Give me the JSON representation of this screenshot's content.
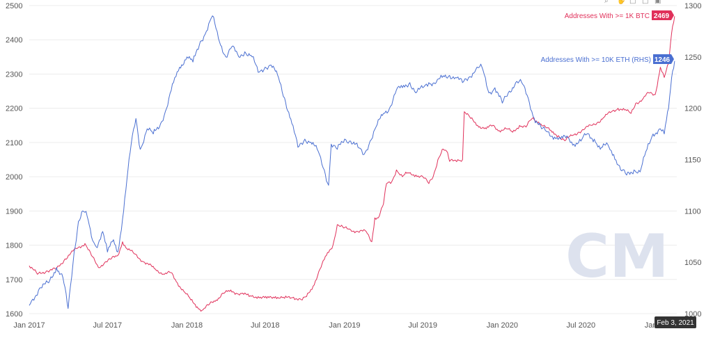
{
  "watermark": "CM",
  "toolbar_icons": [
    "search-icon",
    "hand-icon",
    "reset-icon",
    "download-icon",
    "camera-icon"
  ],
  "hover_date": "Feb 3, 2021",
  "chart_data": {
    "type": "line",
    "x_axis": {
      "range": [
        "2017-01-01",
        "2021-02-08"
      ],
      "ticks": [
        {
          "date": "2017-01-01",
          "label": "Jan 2017"
        },
        {
          "date": "2017-07-01",
          "label": "Jul 2017"
        },
        {
          "date": "2018-01-01",
          "label": "Jan 2018"
        },
        {
          "date": "2018-07-01",
          "label": "Jul 2018"
        },
        {
          "date": "2019-01-01",
          "label": "Jan 2019"
        },
        {
          "date": "2019-07-01",
          "label": "Jul 2019"
        },
        {
          "date": "2020-01-01",
          "label": "Jan 2020"
        },
        {
          "date": "2020-07-01",
          "label": "Jul 2020"
        },
        {
          "date": "2021-01-01",
          "label": "Jan 2021"
        }
      ]
    },
    "y_left": {
      "range": [
        1600,
        2500
      ],
      "ticks": [
        1600,
        1700,
        1800,
        1900,
        2000,
        2100,
        2200,
        2300,
        2400,
        2500
      ]
    },
    "y_right": {
      "range": [
        1000,
        1300
      ],
      "ticks": [
        1000,
        1050,
        1100,
        1150,
        1200,
        1250,
        1300
      ]
    },
    "grid": "horizontal",
    "series": [
      {
        "name": "Addresses With >= 1K BTC",
        "axis": "left",
        "color": "#e0305a",
        "last_value": "2469",
        "points": [
          [
            "2017-01-01",
            1740
          ],
          [
            "2017-01-20",
            1715
          ],
          [
            "2017-02-10",
            1725
          ],
          [
            "2017-03-05",
            1730
          ],
          [
            "2017-03-25",
            1760
          ],
          [
            "2017-04-20",
            1790
          ],
          [
            "2017-05-10",
            1805
          ],
          [
            "2017-05-25",
            1770
          ],
          [
            "2017-06-10",
            1735
          ],
          [
            "2017-06-25",
            1750
          ],
          [
            "2017-07-10",
            1760
          ],
          [
            "2017-07-25",
            1770
          ],
          [
            "2017-08-05",
            1810
          ],
          [
            "2017-08-15",
            1790
          ],
          [
            "2017-09-01",
            1775
          ],
          [
            "2017-09-25",
            1750
          ],
          [
            "2017-10-20",
            1730
          ],
          [
            "2017-11-10",
            1715
          ],
          [
            "2017-11-25",
            1720
          ],
          [
            "2017-12-10",
            1690
          ],
          [
            "2017-12-25",
            1665
          ],
          [
            "2018-01-10",
            1640
          ],
          [
            "2018-01-25",
            1620
          ],
          [
            "2018-02-05",
            1610
          ],
          [
            "2018-02-20",
            1625
          ],
          [
            "2018-03-10",
            1640
          ],
          [
            "2018-03-25",
            1660
          ],
          [
            "2018-04-10",
            1665
          ],
          [
            "2018-04-25",
            1660
          ],
          [
            "2018-05-10",
            1660
          ],
          [
            "2018-05-25",
            1650
          ],
          [
            "2018-06-15",
            1650
          ],
          [
            "2018-07-05",
            1645
          ],
          [
            "2018-07-25",
            1650
          ],
          [
            "2018-08-15",
            1645
          ],
          [
            "2018-09-05",
            1648
          ],
          [
            "2018-09-25",
            1640
          ],
          [
            "2018-10-05",
            1650
          ],
          [
            "2018-10-20",
            1680
          ],
          [
            "2018-11-05",
            1730
          ],
          [
            "2018-11-20",
            1770
          ],
          [
            "2018-12-05",
            1800
          ],
          [
            "2018-12-15",
            1860
          ],
          [
            "2018-12-30",
            1850
          ],
          [
            "2019-01-15",
            1845
          ],
          [
            "2019-02-01",
            1840
          ],
          [
            "2019-02-20",
            1840
          ],
          [
            "2019-03-05",
            1810
          ],
          [
            "2019-03-12",
            1880
          ],
          [
            "2019-03-20",
            1880
          ],
          [
            "2019-04-01",
            1920
          ],
          [
            "2019-04-08",
            1980
          ],
          [
            "2019-04-20",
            1985
          ],
          [
            "2019-05-01",
            2020
          ],
          [
            "2019-05-15",
            2000
          ],
          [
            "2019-05-25",
            2010
          ],
          [
            "2019-06-15",
            2005
          ],
          [
            "2019-07-01",
            2000
          ],
          [
            "2019-07-15",
            1980
          ],
          [
            "2019-07-25",
            2000
          ],
          [
            "2019-08-05",
            2050
          ],
          [
            "2019-08-15",
            2080
          ],
          [
            "2019-08-25",
            2075
          ],
          [
            "2019-09-01",
            2045
          ],
          [
            "2019-09-20",
            2050
          ],
          [
            "2019-10-01",
            2050
          ],
          [
            "2019-10-05",
            2190
          ],
          [
            "2019-10-20",
            2170
          ],
          [
            "2019-11-05",
            2150
          ],
          [
            "2019-11-25",
            2140
          ],
          [
            "2019-12-10",
            2150
          ],
          [
            "2019-12-25",
            2135
          ],
          [
            "2020-01-10",
            2140
          ],
          [
            "2020-01-25",
            2130
          ],
          [
            "2020-02-10",
            2150
          ],
          [
            "2020-02-25",
            2145
          ],
          [
            "2020-03-10",
            2170
          ],
          [
            "2020-03-25",
            2160
          ],
          [
            "2020-04-10",
            2145
          ],
          [
            "2020-04-25",
            2130
          ],
          [
            "2020-05-10",
            2120
          ],
          [
            "2020-05-25",
            2105
          ],
          [
            "2020-06-10",
            2120
          ],
          [
            "2020-06-25",
            2130
          ],
          [
            "2020-07-10",
            2140
          ],
          [
            "2020-07-25",
            2150
          ],
          [
            "2020-08-10",
            2160
          ],
          [
            "2020-08-25",
            2175
          ],
          [
            "2020-09-10",
            2190
          ],
          [
            "2020-09-25",
            2200
          ],
          [
            "2020-10-10",
            2195
          ],
          [
            "2020-10-25",
            2185
          ],
          [
            "2020-11-05",
            2215
          ],
          [
            "2020-11-20",
            2225
          ],
          [
            "2020-12-05",
            2245
          ],
          [
            "2020-12-20",
            2240
          ],
          [
            "2021-01-01",
            2320
          ],
          [
            "2021-01-10",
            2290
          ],
          [
            "2021-01-20",
            2330
          ],
          [
            "2021-01-27",
            2420
          ],
          [
            "2021-02-03",
            2469
          ]
        ]
      },
      {
        "name": "Addresses With >= 10K ETH (RHS)",
        "axis": "right",
        "color": "#4a6fd1",
        "last_value": "1246",
        "points": [
          [
            "2017-01-01",
            1008
          ],
          [
            "2017-01-25",
            1025
          ],
          [
            "2017-02-15",
            1030
          ],
          [
            "2017-03-05",
            1045
          ],
          [
            "2017-03-20",
            1035
          ],
          [
            "2017-04-01",
            1005
          ],
          [
            "2017-04-15",
            1060
          ],
          [
            "2017-04-25",
            1090
          ],
          [
            "2017-05-05",
            1100
          ],
          [
            "2017-05-15",
            1095
          ],
          [
            "2017-05-25",
            1075
          ],
          [
            "2017-06-05",
            1065
          ],
          [
            "2017-06-20",
            1080
          ],
          [
            "2017-07-01",
            1060
          ],
          [
            "2017-07-15",
            1072
          ],
          [
            "2017-07-25",
            1060
          ],
          [
            "2017-08-05",
            1092
          ],
          [
            "2017-08-15",
            1130
          ],
          [
            "2017-08-25",
            1165
          ],
          [
            "2017-09-05",
            1190
          ],
          [
            "2017-09-15",
            1160
          ],
          [
            "2017-10-01",
            1180
          ],
          [
            "2017-10-15",
            1175
          ],
          [
            "2017-11-01",
            1185
          ],
          [
            "2017-11-15",
            1200
          ],
          [
            "2017-12-01",
            1225
          ],
          [
            "2017-12-15",
            1240
          ],
          [
            "2018-01-01",
            1250
          ],
          [
            "2018-01-15",
            1245
          ],
          [
            "2018-02-01",
            1265
          ],
          [
            "2018-02-15",
            1275
          ],
          [
            "2018-03-01",
            1290
          ],
          [
            "2018-03-15",
            1268
          ],
          [
            "2018-04-01",
            1250
          ],
          [
            "2018-04-15",
            1260
          ],
          [
            "2018-05-01",
            1250
          ],
          [
            "2018-05-15",
            1255
          ],
          [
            "2018-06-01",
            1250
          ],
          [
            "2018-06-15",
            1235
          ],
          [
            "2018-07-01",
            1240
          ],
          [
            "2018-07-15",
            1242
          ],
          [
            "2018-08-01",
            1230
          ],
          [
            "2018-08-15",
            1210
          ],
          [
            "2018-09-01",
            1185
          ],
          [
            "2018-09-15",
            1162
          ],
          [
            "2018-10-01",
            1170
          ],
          [
            "2018-10-15",
            1167
          ],
          [
            "2018-11-01",
            1158
          ],
          [
            "2018-11-15",
            1140
          ],
          [
            "2018-11-25",
            1125
          ],
          [
            "2018-12-01",
            1165
          ],
          [
            "2018-12-15",
            1160
          ],
          [
            "2019-01-01",
            1170
          ],
          [
            "2019-01-15",
            1168
          ],
          [
            "2019-02-01",
            1162
          ],
          [
            "2019-02-15",
            1155
          ],
          [
            "2019-03-01",
            1168
          ],
          [
            "2019-03-15",
            1182
          ],
          [
            "2019-04-01",
            1195
          ],
          [
            "2019-04-15",
            1200
          ],
          [
            "2019-05-01",
            1218
          ],
          [
            "2019-05-15",
            1220
          ],
          [
            "2019-06-01",
            1225
          ],
          [
            "2019-06-15",
            1215
          ],
          [
            "2019-07-01",
            1220
          ],
          [
            "2019-07-15",
            1225
          ],
          [
            "2019-08-01",
            1225
          ],
          [
            "2019-08-15",
            1230
          ],
          [
            "2019-09-01",
            1232
          ],
          [
            "2019-09-15",
            1230
          ],
          [
            "2019-10-01",
            1225
          ],
          [
            "2019-10-15",
            1230
          ],
          [
            "2019-11-01",
            1238
          ],
          [
            "2019-11-15",
            1240
          ],
          [
            "2019-12-01",
            1215
          ],
          [
            "2019-12-15",
            1220
          ],
          [
            "2020-01-01",
            1205
          ],
          [
            "2020-01-15",
            1215
          ],
          [
            "2020-02-01",
            1225
          ],
          [
            "2020-02-15",
            1225
          ],
          [
            "2020-03-01",
            1210
          ],
          [
            "2020-03-15",
            1190
          ],
          [
            "2020-04-01",
            1180
          ],
          [
            "2020-04-15",
            1177
          ],
          [
            "2020-05-01",
            1172
          ],
          [
            "2020-05-15",
            1170
          ],
          [
            "2020-06-01",
            1172
          ],
          [
            "2020-06-15",
            1165
          ],
          [
            "2020-07-01",
            1168
          ],
          [
            "2020-07-15",
            1175
          ],
          [
            "2020-08-01",
            1170
          ],
          [
            "2020-08-15",
            1160
          ],
          [
            "2020-09-01",
            1165
          ],
          [
            "2020-09-15",
            1155
          ],
          [
            "2020-10-01",
            1140
          ],
          [
            "2020-10-15",
            1135
          ],
          [
            "2020-11-01",
            1140
          ],
          [
            "2020-11-15",
            1138
          ],
          [
            "2020-12-01",
            1160
          ],
          [
            "2020-12-15",
            1175
          ],
          [
            "2021-01-01",
            1180
          ],
          [
            "2021-01-10",
            1175
          ],
          [
            "2021-01-20",
            1200
          ],
          [
            "2021-01-27",
            1230
          ],
          [
            "2021-02-03",
            1246
          ]
        ]
      }
    ]
  }
}
